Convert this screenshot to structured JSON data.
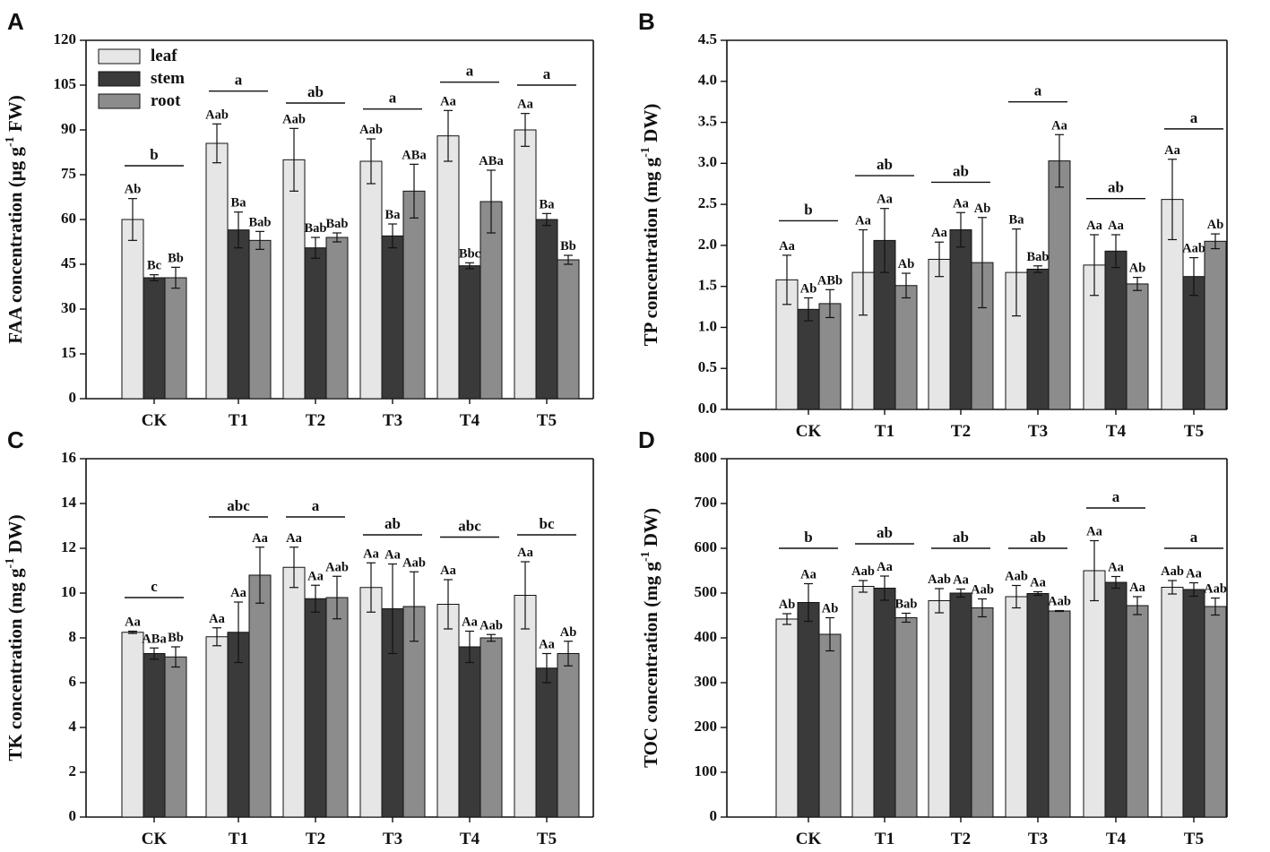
{
  "colors": {
    "leaf": "#e6e6e6",
    "stem": "#3a3a3a",
    "root": "#8c8c8c",
    "ink": "#111111"
  },
  "legend": [
    {
      "key": "leaf",
      "label": "leaf"
    },
    {
      "key": "stem",
      "label": "stem"
    },
    {
      "key": "root",
      "label": "root"
    }
  ],
  "chart_data": [
    {
      "panel": "A",
      "type": "bar",
      "title": "",
      "ylabel_main": "FAA concentration (μg g",
      "ylabel_sup": "-1",
      "ylabel_tail": " FW)",
      "categories": [
        "CK",
        "T1",
        "T2",
        "T3",
        "T4",
        "T5"
      ],
      "ylim": [
        0,
        120
      ],
      "yticks": [
        0,
        15,
        30,
        45,
        60,
        75,
        90,
        105,
        120
      ],
      "legend_position": "top-left",
      "series": [
        {
          "name": "leaf",
          "values": [
            60,
            85.5,
            80,
            79.5,
            88,
            90
          ],
          "errors": [
            7,
            6.5,
            10.5,
            7.5,
            8.5,
            5.5
          ],
          "labels": [
            "Ab",
            "Aab",
            "Aab",
            "Aab",
            "Aa",
            "Aa"
          ]
        },
        {
          "name": "stem",
          "values": [
            40.5,
            56.5,
            50.5,
            54.5,
            44.5,
            60
          ],
          "errors": [
            1,
            6,
            3.5,
            4,
            1,
            2
          ],
          "labels": [
            "Bc",
            "Ba",
            "Bab",
            "Ba",
            "Bbc",
            "Ba"
          ]
        },
        {
          "name": "root",
          "values": [
            40.5,
            53,
            54,
            69.5,
            66,
            46.5
          ],
          "errors": [
            3.5,
            3,
            1.5,
            9,
            10.5,
            1.5
          ],
          "labels": [
            "Bb",
            "Bab",
            "Bab",
            "ABa",
            "ABa",
            "Bb"
          ]
        }
      ],
      "group_letters": [
        {
          "text": "b",
          "value": 78
        },
        {
          "text": "a",
          "value": 103
        },
        {
          "text": "ab",
          "value": 99
        },
        {
          "text": "a",
          "value": 97
        },
        {
          "text": "a",
          "value": 106
        },
        {
          "text": "a",
          "value": 105
        }
      ]
    },
    {
      "panel": "B",
      "type": "bar",
      "title": "",
      "ylabel_main": "TP concentration (mg g",
      "ylabel_sup": "-1",
      "ylabel_tail": " DW)",
      "categories": [
        "CK",
        "T1",
        "T2",
        "T3",
        "T4",
        "T5"
      ],
      "ylim": [
        0,
        4.5
      ],
      "yticks": [
        "0.0",
        "0.5",
        "1.0",
        "1.5",
        "2.0",
        "2.5",
        "3.0",
        "3.5",
        "4.0",
        "4.5"
      ],
      "legend_position": "none",
      "series": [
        {
          "name": "leaf",
          "values": [
            1.58,
            1.67,
            1.83,
            1.67,
            1.76,
            2.56
          ],
          "errors": [
            0.3,
            0.52,
            0.21,
            0.53,
            0.37,
            0.49
          ],
          "labels": [
            "Aa",
            "Aa",
            "Aa",
            "Ba",
            "Aa",
            "Aa"
          ]
        },
        {
          "name": "stem",
          "values": [
            1.22,
            2.06,
            2.19,
            1.71,
            1.93,
            1.62
          ],
          "errors": [
            0.14,
            0.39,
            0.21,
            0.04,
            0.2,
            0.23
          ],
          "labels": [
            "Ab",
            "Aa",
            "Aa",
            "Bab",
            "Aa",
            "Aab"
          ]
        },
        {
          "name": "root",
          "values": [
            1.29,
            1.51,
            1.79,
            3.03,
            1.53,
            2.05
          ],
          "errors": [
            0.17,
            0.15,
            0.55,
            0.32,
            0.08,
            0.09
          ],
          "labels": [
            "ABb",
            "Ab",
            "Ab",
            "Aa",
            "Ab",
            "Ab"
          ]
        }
      ],
      "group_letters": [
        {
          "text": "b",
          "value": 2.3
        },
        {
          "text": "ab",
          "value": 2.85
        },
        {
          "text": "ab",
          "value": 2.77
        },
        {
          "text": "a",
          "value": 3.75
        },
        {
          "text": "ab",
          "value": 2.57
        },
        {
          "text": "a",
          "value": 3.42
        }
      ]
    },
    {
      "panel": "C",
      "type": "bar",
      "title": "",
      "ylabel_main": "TK concentration (mg g",
      "ylabel_sup": "-1",
      "ylabel_tail": " DW)",
      "categories": [
        "CK",
        "T1",
        "T2",
        "T3",
        "T4",
        "T5"
      ],
      "ylim": [
        0,
        16
      ],
      "yticks": [
        0,
        2,
        4,
        6,
        8,
        10,
        12,
        14,
        16
      ],
      "legend_position": "none",
      "series": [
        {
          "name": "leaf",
          "values": [
            8.25,
            8.05,
            11.15,
            10.25,
            9.5,
            9.9
          ],
          "errors": [
            0.05,
            0.4,
            0.9,
            1.1,
            1.1,
            1.5
          ],
          "labels": [
            "Aa",
            "Aa",
            "Aa",
            "Aa",
            "Aa",
            "Aa"
          ]
        },
        {
          "name": "stem",
          "values": [
            7.3,
            8.25,
            9.75,
            9.3,
            7.6,
            6.65
          ],
          "errors": [
            0.25,
            1.35,
            0.6,
            2,
            0.7,
            0.65
          ],
          "labels": [
            "ABa",
            "Aa",
            "Aa",
            "Aa",
            "Aa",
            "Aa"
          ]
        },
        {
          "name": "root",
          "values": [
            7.15,
            10.8,
            9.8,
            9.4,
            8,
            7.3
          ],
          "errors": [
            0.45,
            1.25,
            0.95,
            1.55,
            0.15,
            0.55
          ],
          "labels": [
            "Bb",
            "Aa",
            "Aab",
            "Aab",
            "Aab",
            "Ab"
          ]
        }
      ],
      "group_letters": [
        {
          "text": "c",
          "value": 9.8
        },
        {
          "text": "abc",
          "value": 13.4
        },
        {
          "text": "a",
          "value": 13.4
        },
        {
          "text": "ab",
          "value": 12.6
        },
        {
          "text": "abc",
          "value": 12.5
        },
        {
          "text": "bc",
          "value": 12.6
        }
      ]
    },
    {
      "panel": "D",
      "type": "bar",
      "title": "",
      "ylabel_main": "TOC concentration (mg g",
      "ylabel_sup": "-1",
      "ylabel_tail": " DW)",
      "categories": [
        "CK",
        "T1",
        "T2",
        "T3",
        "T4",
        "T5"
      ],
      "ylim": [
        0,
        800
      ],
      "yticks": [
        0,
        100,
        200,
        300,
        400,
        500,
        600,
        700,
        800
      ],
      "legend_position": "none",
      "series": [
        {
          "name": "leaf",
          "values": [
            442,
            515,
            483,
            492,
            550,
            513
          ],
          "errors": [
            12,
            13,
            27,
            25,
            67,
            15
          ],
          "labels": [
            "Ab",
            "Aab",
            "Aab",
            "Aab",
            "Aa",
            "Aab"
          ]
        },
        {
          "name": "stem",
          "values": [
            479,
            511,
            500,
            499,
            524,
            508
          ],
          "errors": [
            42,
            27,
            9,
            4,
            13,
            15
          ],
          "labels": [
            "Aa",
            "Aa",
            "Aa",
            "Aa",
            "Aa",
            "Aa"
          ]
        },
        {
          "name": "root",
          "values": [
            408,
            445,
            467,
            460,
            472,
            470
          ],
          "errors": [
            37,
            10,
            20,
            1,
            20,
            19
          ],
          "labels": [
            "Ab",
            "Bab",
            "Aab",
            "Aab",
            "Aa",
            "Aab"
          ]
        }
      ],
      "group_letters": [
        {
          "text": "b",
          "value": 600
        },
        {
          "text": "ab",
          "value": 610
        },
        {
          "text": "ab",
          "value": 600
        },
        {
          "text": "ab",
          "value": 600
        },
        {
          "text": "a",
          "value": 690
        },
        {
          "text": "a",
          "value": 600
        }
      ]
    }
  ]
}
